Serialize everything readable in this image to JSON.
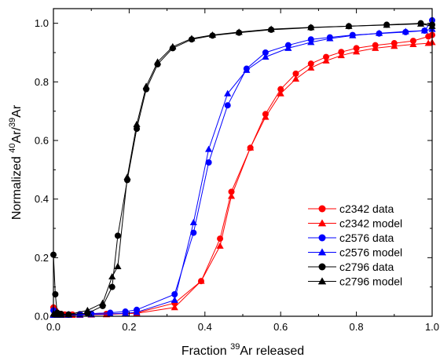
{
  "chart_data": {
    "type": "line",
    "title": "",
    "xlabel": {
      "prefix": "Fraction ",
      "sup": "39",
      "suffix": "Ar released"
    },
    "ylabel": {
      "prefix": "Normalized ",
      "sup1": "40",
      "mid": "Ar/",
      "sup2": "39",
      "suffix": "Ar"
    },
    "xlim": [
      0,
      1.0
    ],
    "ylim": [
      0,
      1.05
    ],
    "xticks": [
      "0.0",
      "0.2",
      "0.4",
      "0.6",
      "0.8",
      "1.0"
    ],
    "yticks": [
      "0.0",
      "0.2",
      "0.4",
      "0.6",
      "0.8",
      "1.0"
    ],
    "grid": false,
    "legend_position": "bottom-right",
    "series": [
      {
        "name": "c2342 data",
        "color": "#ff0000",
        "marker": "circle",
        "x": [
          0.0,
          0.005,
          0.01,
          0.02,
          0.03,
          0.05,
          0.07,
          0.1,
          0.14,
          0.19,
          0.22,
          0.32,
          0.39,
          0.44,
          0.47,
          0.52,
          0.56,
          0.6,
          0.64,
          0.68,
          0.72,
          0.76,
          0.8,
          0.85,
          0.9,
          0.95,
          0.99,
          1.0
        ],
        "y": [
          0.03,
          0.02,
          0.012,
          0.008,
          0.006,
          0.006,
          0.007,
          0.008,
          0.008,
          0.009,
          0.012,
          0.045,
          0.12,
          0.265,
          0.425,
          0.575,
          0.69,
          0.775,
          0.828,
          0.862,
          0.885,
          0.902,
          0.915,
          0.925,
          0.932,
          0.94,
          0.955,
          0.96
        ]
      },
      {
        "name": "c2342 model",
        "color": "#ff0000",
        "marker": "triangle",
        "x": [
          0.0,
          0.005,
          0.01,
          0.02,
          0.03,
          0.05,
          0.07,
          0.1,
          0.14,
          0.19,
          0.22,
          0.32,
          0.39,
          0.44,
          0.47,
          0.52,
          0.56,
          0.6,
          0.64,
          0.68,
          0.72,
          0.76,
          0.8,
          0.85,
          0.9,
          0.95,
          0.99,
          1.0
        ],
        "y": [
          0.005,
          0.005,
          0.004,
          0.004,
          0.004,
          0.004,
          0.004,
          0.005,
          0.006,
          0.009,
          0.01,
          0.03,
          0.12,
          0.24,
          0.41,
          0.575,
          0.68,
          0.76,
          0.81,
          0.848,
          0.872,
          0.89,
          0.903,
          0.915,
          0.922,
          0.928,
          0.932,
          0.935
        ]
      },
      {
        "name": "c2576 data",
        "color": "#0000ff",
        "marker": "circle",
        "x": [
          0.0,
          0.005,
          0.01,
          0.02,
          0.04,
          0.07,
          0.1,
          0.15,
          0.19,
          0.22,
          0.32,
          0.37,
          0.41,
          0.46,
          0.51,
          0.56,
          0.62,
          0.68,
          0.73,
          0.79,
          0.86,
          0.93,
          0.98,
          1.0
        ],
        "y": [
          0.02,
          0.012,
          0.008,
          0.006,
          0.006,
          0.007,
          0.009,
          0.012,
          0.016,
          0.022,
          0.075,
          0.285,
          0.525,
          0.72,
          0.845,
          0.9,
          0.925,
          0.945,
          0.952,
          0.96,
          0.965,
          0.97,
          0.975,
          1.01
        ]
      },
      {
        "name": "c2576 model",
        "color": "#0000ff",
        "marker": "triangle",
        "x": [
          0.0,
          0.005,
          0.01,
          0.02,
          0.04,
          0.07,
          0.1,
          0.15,
          0.19,
          0.22,
          0.32,
          0.37,
          0.41,
          0.46,
          0.51,
          0.56,
          0.62,
          0.68,
          0.73,
          0.79,
          0.86,
          0.93,
          0.98,
          1.0
        ],
        "y": [
          0.004,
          0.004,
          0.004,
          0.004,
          0.004,
          0.005,
          0.006,
          0.008,
          0.01,
          0.014,
          0.055,
          0.32,
          0.57,
          0.76,
          0.84,
          0.885,
          0.915,
          0.935,
          0.948,
          0.958,
          0.966,
          0.972,
          0.975,
          0.98
        ]
      },
      {
        "name": "c2796 data",
        "color": "#000000",
        "marker": "circle",
        "x": [
          0.0,
          0.005,
          0.01,
          0.02,
          0.04,
          0.09,
          0.13,
          0.155,
          0.17,
          0.195,
          0.22,
          0.245,
          0.275,
          0.315,
          0.365,
          0.42,
          0.49,
          0.575,
          0.68,
          0.78,
          0.88,
          0.97,
          1.0
        ],
        "y": [
          0.21,
          0.075,
          0.012,
          0.008,
          0.006,
          0.01,
          0.035,
          0.1,
          0.275,
          0.465,
          0.64,
          0.775,
          0.86,
          0.915,
          0.945,
          0.958,
          0.968,
          0.978,
          0.985,
          0.99,
          0.995,
          1.0,
          0.995
        ]
      },
      {
        "name": "c2796 model",
        "color": "#000000",
        "marker": "triangle",
        "x": [
          0.0,
          0.005,
          0.01,
          0.02,
          0.04,
          0.09,
          0.13,
          0.155,
          0.17,
          0.195,
          0.22,
          0.245,
          0.275,
          0.315,
          0.365,
          0.42,
          0.49,
          0.575,
          0.68,
          0.78,
          0.88,
          0.97,
          1.0
        ],
        "y": [
          0.008,
          0.006,
          0.005,
          0.005,
          0.006,
          0.02,
          0.045,
          0.135,
          0.17,
          0.475,
          0.655,
          0.785,
          0.868,
          0.92,
          0.948,
          0.96,
          0.97,
          0.98,
          0.986,
          0.99,
          0.994,
          0.998,
          0.99
        ]
      }
    ]
  }
}
